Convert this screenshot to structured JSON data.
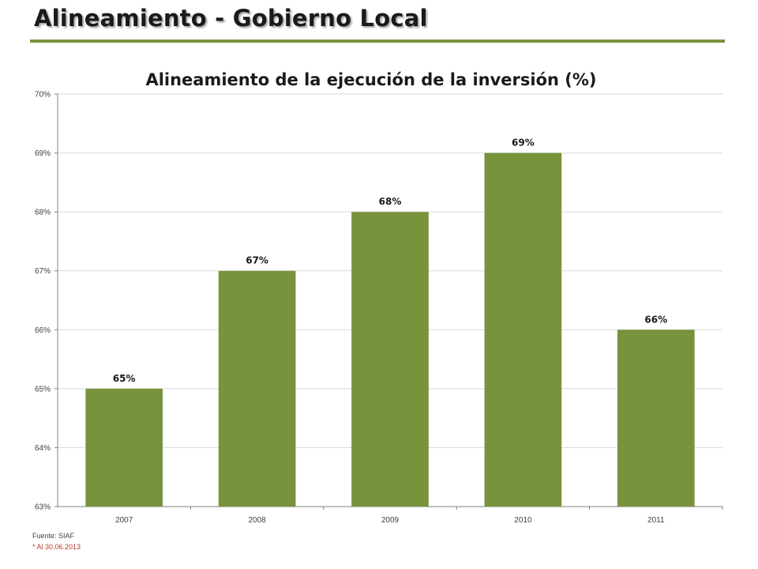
{
  "slide": {
    "title": "Alineamiento - Gobierno Local",
    "source": "Fuente: SIAF",
    "note": "* Al 30.06.2013"
  },
  "colors": {
    "bar": "#77933c",
    "rule": "#77933c",
    "grid": "#d9d9d9",
    "axis": "#808080",
    "text": "#1a1a1a",
    "note": "#c0392b"
  },
  "chart_data": {
    "type": "bar",
    "title": "Alineamiento de la ejecución de la inversión (%)",
    "xlabel": "",
    "ylabel": "",
    "categories": [
      "2007",
      "2008",
      "2009",
      "2010",
      "2011"
    ],
    "values": [
      65,
      67,
      68,
      69,
      66
    ],
    "data_labels": [
      "65%",
      "67%",
      "68%",
      "69%",
      "66%"
    ],
    "ylim": [
      63,
      70
    ],
    "yticks": [
      63,
      64,
      65,
      66,
      67,
      68,
      69,
      70
    ],
    "ytick_labels": [
      "63%",
      "64%",
      "65%",
      "66%",
      "67%",
      "68%",
      "69%",
      "70%"
    ],
    "grid": true,
    "legend": "none"
  }
}
